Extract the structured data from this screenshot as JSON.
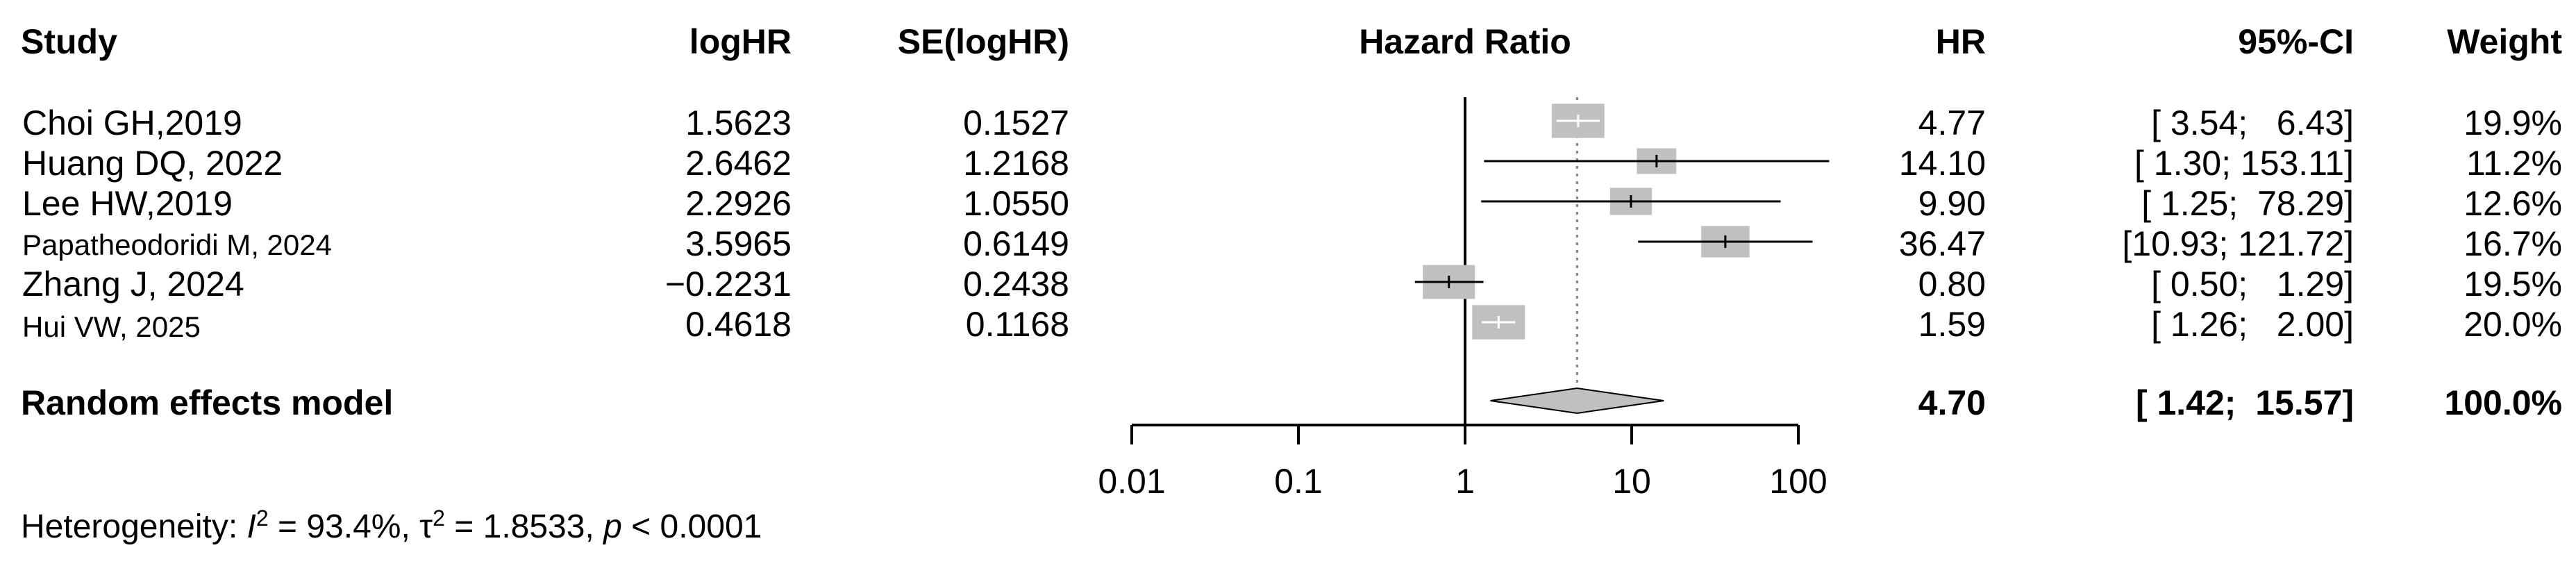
{
  "chart_data": {
    "type": "forest",
    "headers": {
      "study": "Study",
      "loghr": "logHR",
      "se": "SE(logHR)",
      "plot": "Hazard Ratio",
      "hr": "HR",
      "ci": "95%-CI",
      "weight": "Weight"
    },
    "studies": [
      {
        "name": "Choi GH,2019",
        "loghr": "1.5623",
        "se": "0.1527",
        "hr": 4.77,
        "lower": 3.54,
        "upper": 6.43,
        "hr_text": "4.77",
        "ci_text": "[ 3.54;   6.43]",
        "weight_text": "19.9%",
        "weight": 19.9
      },
      {
        "name": "Huang DQ, 2022",
        "loghr": "2.6462",
        "se": "1.2168",
        "hr": 14.1,
        "lower": 1.3,
        "upper": 153.11,
        "hr_text": "14.10",
        "ci_text": "[ 1.30; 153.11]",
        "weight_text": "11.2%",
        "weight": 11.2
      },
      {
        "name": "Lee HW,2019",
        "loghr": "2.2926",
        "se": "1.0550",
        "hr": 9.9,
        "lower": 1.25,
        "upper": 78.29,
        "hr_text": "9.90",
        "ci_text": "[ 1.25;  78.29]",
        "weight_text": "12.6%",
        "weight": 12.6
      },
      {
        "name": "Papatheodoridi M, 2024",
        "loghr": "3.5965",
        "se": "0.6149",
        "hr": 36.47,
        "lower": 10.93,
        "upper": 121.72,
        "hr_text": "36.47",
        "ci_text": "[10.93; 121.72]",
        "weight_text": "16.7%",
        "weight": 16.7
      },
      {
        "name": "Zhang J, 2024",
        "loghr": "−0.2231",
        "se": "0.2438",
        "hr": 0.8,
        "lower": 0.5,
        "upper": 1.29,
        "hr_text": "0.80",
        "ci_text": "[ 0.50;   1.29]",
        "weight_text": "19.5%",
        "weight": 19.5
      },
      {
        "name": "Hui VW, 2025",
        "loghr": "0.4618",
        "se": "0.1168",
        "hr": 1.59,
        "lower": 1.26,
        "upper": 2.0,
        "hr_text": "1.59",
        "ci_text": "[ 1.26;   2.00]",
        "weight_text": "20.0%",
        "weight": 20.0
      }
    ],
    "pooled": {
      "name": "Random effects model",
      "hr": 4.7,
      "lower": 1.42,
      "upper": 15.57,
      "hr_text": "4.70",
      "ci_text": "[ 1.42;  15.57]",
      "weight_text": "100.0%"
    },
    "x_axis": {
      "scale": "log",
      "ticks": [
        0.01,
        0.1,
        1,
        10,
        100
      ],
      "tick_labels": [
        "0.01",
        "0.1",
        "1",
        "10",
        "100"
      ],
      "reference": 1
    },
    "heterogeneity": {
      "prefix": "Heterogeneity: ",
      "i2_symbol": "I",
      "i2_value": " = 93.4%, ",
      "tau_symbol": "τ",
      "tau_value": " = 1.8533, ",
      "p_symbol": "p",
      "p_value": " < 0.0001"
    },
    "colors": {
      "box": "#c0c0c0",
      "diamond": "#c0c0c0",
      "line": "#000000",
      "dotted": "#808080"
    }
  }
}
